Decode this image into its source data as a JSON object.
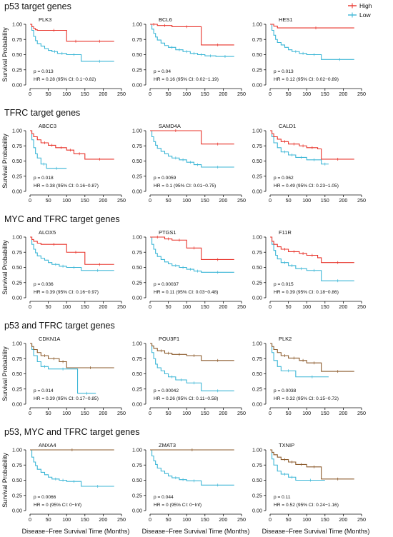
{
  "legend": [
    {
      "label": "High",
      "color": "#e8332a"
    },
    {
      "label": "Low",
      "color": "#3bb6d6"
    }
  ],
  "y_axis_label": "Survival Probability",
  "x_axis_label": "Disease−Free Survival Time (Months)",
  "y_ticks": [
    "0.00",
    "0.25",
    "0.50",
    "0.75",
    "1.00"
  ],
  "x_ticks": [
    "0",
    "50",
    "100",
    "150",
    "200",
    "250"
  ],
  "sections": [
    {
      "title": "p53 target genes"
    },
    {
      "title": "TFRC target genes"
    },
    {
      "title": "MYC and TFRC target genes"
    },
    {
      "title": "p53 and TFRC target genes"
    },
    {
      "title": "p53, MYC and TFRC target genes"
    }
  ],
  "chart_data": [
    {
      "type": "line",
      "section": 0,
      "title": "PLK3",
      "p": "p = 0.013",
      "hr": "HR = 0.28 (95% CI: 0.1−0.82)",
      "xlim": [
        0,
        250
      ],
      "ylim": [
        0,
        1
      ],
      "high_color": "#e8332a",
      "series": [
        {
          "name": "High",
          "x": [
            0,
            5,
            10,
            15,
            20,
            30,
            100,
            150,
            230
          ],
          "y": [
            1.0,
            0.96,
            0.93,
            0.91,
            0.9,
            0.9,
            0.72,
            0.72,
            0.72
          ]
        },
        {
          "name": "Low",
          "x": [
            0,
            5,
            10,
            15,
            20,
            30,
            40,
            50,
            60,
            75,
            100,
            140,
            150,
            230
          ],
          "y": [
            1.0,
            0.9,
            0.8,
            0.73,
            0.68,
            0.64,
            0.6,
            0.57,
            0.55,
            0.52,
            0.5,
            0.39,
            0.39,
            0.39
          ]
        }
      ]
    },
    {
      "type": "line",
      "section": 0,
      "title": "BCL6",
      "p": "p = 0.04",
      "hr": "HR = 0.16 (95% CI: 0.02−1.19)",
      "xlim": [
        0,
        250
      ],
      "ylim": [
        0,
        1
      ],
      "high_color": "#e8332a",
      "series": [
        {
          "name": "High",
          "x": [
            0,
            20,
            60,
            140,
            230
          ],
          "y": [
            1.0,
            0.98,
            0.96,
            0.66,
            0.66
          ]
        },
        {
          "name": "Low",
          "x": [
            0,
            5,
            10,
            15,
            20,
            30,
            40,
            50,
            70,
            90,
            110,
            130,
            150,
            180,
            230
          ],
          "y": [
            1.0,
            0.92,
            0.85,
            0.79,
            0.74,
            0.69,
            0.65,
            0.62,
            0.58,
            0.55,
            0.52,
            0.5,
            0.48,
            0.47,
            0.47
          ]
        }
      ]
    },
    {
      "type": "line",
      "section": 0,
      "title": "HES1",
      "p": "p = 0.013",
      "hr": "HR = 0.12 (95% CI: 0.02−0.89)",
      "xlim": [
        0,
        250
      ],
      "ylim": [
        0,
        1
      ],
      "high_color": "#e8332a",
      "series": [
        {
          "name": "High",
          "x": [
            0,
            10,
            20,
            230
          ],
          "y": [
            1.0,
            0.97,
            0.94,
            0.94
          ]
        },
        {
          "name": "Low",
          "x": [
            0,
            5,
            10,
            15,
            20,
            30,
            40,
            50,
            60,
            80,
            100,
            140,
            150,
            230
          ],
          "y": [
            1.0,
            0.9,
            0.82,
            0.75,
            0.7,
            0.66,
            0.62,
            0.58,
            0.55,
            0.52,
            0.5,
            0.42,
            0.42,
            0.42
          ]
        }
      ]
    },
    {
      "type": "line",
      "section": 1,
      "title": "ABCC3",
      "p": "p = 0.018",
      "hr": "HR = 0.38 (95% CI: 0.16−0.87)",
      "xlim": [
        0,
        250
      ],
      "ylim": [
        0,
        1
      ],
      "high_color": "#e8332a",
      "series": [
        {
          "name": "High",
          "x": [
            0,
            5,
            10,
            20,
            30,
            50,
            70,
            100,
            120,
            150,
            230
          ],
          "y": [
            1.0,
            0.95,
            0.9,
            0.85,
            0.8,
            0.76,
            0.72,
            0.68,
            0.62,
            0.53,
            0.53
          ]
        },
        {
          "name": "Low",
          "x": [
            0,
            5,
            10,
            15,
            20,
            30,
            45,
            100
          ],
          "y": [
            1.0,
            0.85,
            0.72,
            0.62,
            0.55,
            0.45,
            0.38,
            0.38
          ]
        }
      ]
    },
    {
      "type": "line",
      "section": 1,
      "title": "SAMD4A",
      "p": "p = 0.0059",
      "hr": "HR = 0.1 (95% CI: 0.01−0.75)",
      "xlim": [
        0,
        250
      ],
      "ylim": [
        0,
        1
      ],
      "high_color": "#e8332a",
      "series": [
        {
          "name": "High",
          "x": [
            0,
            140,
            230
          ],
          "y": [
            1.0,
            0.78,
            0.78
          ]
        },
        {
          "name": "Low",
          "x": [
            0,
            5,
            10,
            15,
            20,
            30,
            40,
            50,
            60,
            80,
            100,
            120,
            140,
            230
          ],
          "y": [
            1.0,
            0.9,
            0.82,
            0.76,
            0.71,
            0.66,
            0.62,
            0.58,
            0.55,
            0.52,
            0.48,
            0.44,
            0.4,
            0.4
          ]
        }
      ]
    },
    {
      "type": "line",
      "section": 1,
      "title": "CALD1",
      "p": "p = 0.062",
      "hr": "HR = 0.49 (95% CI: 0.23−1.05)",
      "xlim": [
        0,
        250
      ],
      "ylim": [
        0,
        1
      ],
      "high_color": "#e8332a",
      "series": [
        {
          "name": "High",
          "x": [
            0,
            5,
            10,
            20,
            30,
            50,
            80,
            100,
            130,
            140,
            230
          ],
          "y": [
            1.0,
            0.95,
            0.9,
            0.86,
            0.82,
            0.78,
            0.75,
            0.72,
            0.7,
            0.53,
            0.53
          ]
        },
        {
          "name": "Low",
          "x": [
            0,
            5,
            10,
            20,
            30,
            50,
            70,
            100,
            140,
            160
          ],
          "y": [
            1.0,
            0.9,
            0.8,
            0.72,
            0.65,
            0.6,
            0.56,
            0.52,
            0.45,
            0.45
          ]
        }
      ]
    },
    {
      "type": "line",
      "section": 2,
      "title": "ALOX5",
      "p": "p = 0.036",
      "hr": "HR = 0.39 (95% CI: 0.16−0.97)",
      "xlim": [
        0,
        250
      ],
      "ylim": [
        0,
        1
      ],
      "high_color": "#e8332a",
      "series": [
        {
          "name": "High",
          "x": [
            0,
            5,
            10,
            20,
            30,
            100,
            150,
            230
          ],
          "y": [
            1.0,
            0.96,
            0.93,
            0.9,
            0.88,
            0.75,
            0.55,
            0.55
          ]
        },
        {
          "name": "Low",
          "x": [
            0,
            5,
            10,
            15,
            20,
            30,
            40,
            50,
            60,
            80,
            100,
            140,
            230
          ],
          "y": [
            1.0,
            0.88,
            0.8,
            0.74,
            0.69,
            0.65,
            0.62,
            0.58,
            0.55,
            0.52,
            0.5,
            0.45,
            0.45
          ]
        }
      ]
    },
    {
      "type": "line",
      "section": 2,
      "title": "PTGS1",
      "p": "p = 0.00037",
      "hr": "HR = 0.11 (95% CI: 0.03−0.48)",
      "xlim": [
        0,
        250
      ],
      "ylim": [
        0,
        1
      ],
      "high_color": "#e8332a",
      "series": [
        {
          "name": "High",
          "x": [
            0,
            40,
            60,
            100,
            140,
            230
          ],
          "y": [
            1.0,
            0.97,
            0.95,
            0.82,
            0.63,
            0.63
          ]
        },
        {
          "name": "Low",
          "x": [
            0,
            5,
            10,
            15,
            20,
            30,
            40,
            50,
            60,
            80,
            100,
            120,
            140,
            230
          ],
          "y": [
            1.0,
            0.88,
            0.8,
            0.73,
            0.68,
            0.63,
            0.59,
            0.56,
            0.53,
            0.5,
            0.47,
            0.44,
            0.42,
            0.42
          ]
        }
      ]
    },
    {
      "type": "line",
      "section": 2,
      "title": "F11R",
      "p": "p = 0.015",
      "hr": "HR = 0.39 (95% CI: 0.18−0.86)",
      "xlim": [
        0,
        250
      ],
      "ylim": [
        0,
        1
      ],
      "high_color": "#e8332a",
      "series": [
        {
          "name": "High",
          "x": [
            0,
            5,
            10,
            20,
            30,
            50,
            80,
            100,
            130,
            140,
            230
          ],
          "y": [
            1.0,
            0.93,
            0.88,
            0.84,
            0.8,
            0.76,
            0.73,
            0.7,
            0.66,
            0.58,
            0.58
          ]
        },
        {
          "name": "Low",
          "x": [
            0,
            5,
            10,
            15,
            20,
            30,
            50,
            70,
            100,
            140,
            230
          ],
          "y": [
            1.0,
            0.88,
            0.78,
            0.7,
            0.64,
            0.58,
            0.53,
            0.48,
            0.45,
            0.28,
            0.28
          ]
        }
      ]
    },
    {
      "type": "line",
      "section": 3,
      "title": "CDKN1A",
      "p": "p = 0.014",
      "hr": "HR = 0.39 (95% CI: 0.17−0.85)",
      "xlim": [
        0,
        250
      ],
      "ylim": [
        0,
        1
      ],
      "high_color": "#8b5a2b",
      "series": [
        {
          "name": "High",
          "x": [
            0,
            5,
            10,
            20,
            30,
            50,
            80,
            100,
            230
          ],
          "y": [
            1.0,
            0.95,
            0.9,
            0.85,
            0.8,
            0.75,
            0.7,
            0.6,
            0.6
          ]
        },
        {
          "name": "Low",
          "x": [
            0,
            5,
            10,
            20,
            30,
            50,
            130,
            180
          ],
          "y": [
            1.0,
            0.9,
            0.8,
            0.7,
            0.62,
            0.58,
            0.18,
            0.18
          ]
        }
      ]
    },
    {
      "type": "line",
      "section": 3,
      "title": "POU3F1",
      "p": "p = 0.00042",
      "hr": "HR = 0.26 (95% CI: 0.11−0.58)",
      "xlim": [
        0,
        250
      ],
      "ylim": [
        0,
        1
      ],
      "high_color": "#8b5a2b",
      "series": [
        {
          "name": "High",
          "x": [
            0,
            5,
            10,
            20,
            40,
            60,
            100,
            140,
            230
          ],
          "y": [
            1.0,
            0.96,
            0.92,
            0.88,
            0.84,
            0.82,
            0.8,
            0.72,
            0.72
          ]
        },
        {
          "name": "Low",
          "x": [
            0,
            5,
            10,
            15,
            20,
            30,
            40,
            50,
            70,
            100,
            140,
            230
          ],
          "y": [
            1.0,
            0.85,
            0.75,
            0.66,
            0.6,
            0.55,
            0.5,
            0.45,
            0.4,
            0.35,
            0.22,
            0.22
          ]
        }
      ]
    },
    {
      "type": "line",
      "section": 3,
      "title": "PLK2",
      "p": "p = 0.0038",
      "hr": "HR = 0.32 (95% CI: 0.15−0.72)",
      "xlim": [
        0,
        250
      ],
      "ylim": [
        0,
        1
      ],
      "high_color": "#8b5a2b",
      "series": [
        {
          "name": "High",
          "x": [
            0,
            5,
            10,
            20,
            30,
            50,
            80,
            100,
            140,
            230
          ],
          "y": [
            1.0,
            0.95,
            0.9,
            0.85,
            0.8,
            0.76,
            0.72,
            0.68,
            0.54,
            0.54
          ]
        },
        {
          "name": "Low",
          "x": [
            0,
            5,
            10,
            20,
            30,
            70,
            160
          ],
          "y": [
            1.0,
            0.85,
            0.72,
            0.62,
            0.55,
            0.45,
            0.45
          ]
        }
      ]
    },
    {
      "type": "line",
      "section": 4,
      "title": "ANXA4",
      "p": "p = 0.0066",
      "hr": "HR = 0 (95% CI: 0−Inf)",
      "xlim": [
        0,
        250
      ],
      "ylim": [
        0,
        1
      ],
      "high_color": "#8b5a2b",
      "series": [
        {
          "name": "High",
          "x": [
            0,
            230
          ],
          "y": [
            1.0,
            1.0
          ]
        },
        {
          "name": "Low",
          "x": [
            0,
            5,
            10,
            15,
            20,
            30,
            40,
            50,
            60,
            80,
            100,
            140,
            230
          ],
          "y": [
            1.0,
            0.88,
            0.8,
            0.74,
            0.68,
            0.63,
            0.59,
            0.55,
            0.52,
            0.5,
            0.48,
            0.4,
            0.4
          ]
        }
      ]
    },
    {
      "type": "line",
      "section": 4,
      "title": "ZMAT3",
      "p": "p = 0.044",
      "hr": "HR = 0 (95% CI: 0−Inf)",
      "xlim": [
        0,
        250
      ],
      "ylim": [
        0,
        1
      ],
      "high_color": "#8b5a2b",
      "series": [
        {
          "name": "High",
          "x": [
            0,
            230
          ],
          "y": [
            1.0,
            1.0
          ]
        },
        {
          "name": "Low",
          "x": [
            0,
            5,
            10,
            15,
            20,
            30,
            40,
            50,
            60,
            80,
            100,
            140,
            230
          ],
          "y": [
            1.0,
            0.9,
            0.82,
            0.76,
            0.7,
            0.65,
            0.61,
            0.57,
            0.54,
            0.51,
            0.49,
            0.42,
            0.42
          ]
        }
      ]
    },
    {
      "type": "line",
      "section": 4,
      "title": "TXNIP",
      "p": "p = 0.11",
      "hr": "HR = 0.52 (95% CI: 0.24−1.16)",
      "xlim": [
        0,
        250
      ],
      "ylim": [
        0,
        1
      ],
      "high_color": "#8b5a2b",
      "series": [
        {
          "name": "High",
          "x": [
            0,
            5,
            10,
            20,
            30,
            50,
            70,
            100,
            140,
            230
          ],
          "y": [
            1.0,
            0.96,
            0.92,
            0.88,
            0.84,
            0.8,
            0.76,
            0.72,
            0.52,
            0.52
          ]
        },
        {
          "name": "Low",
          "x": [
            0,
            5,
            10,
            20,
            30,
            50,
            70,
            150
          ],
          "y": [
            1.0,
            0.85,
            0.75,
            0.65,
            0.6,
            0.55,
            0.5,
            0.5
          ]
        }
      ]
    }
  ]
}
